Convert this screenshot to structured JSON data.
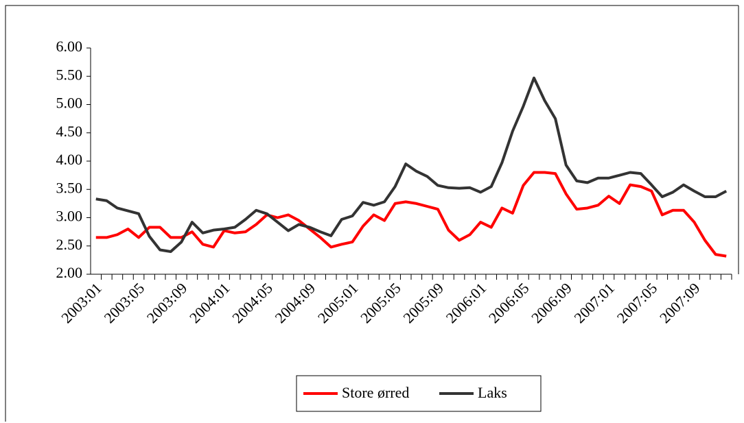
{
  "chart_data": {
    "type": "line",
    "categories": [
      "2003:01",
      null,
      null,
      null,
      "2003:05",
      null,
      null,
      null,
      "2003:09",
      null,
      null,
      null,
      "2004:01",
      null,
      null,
      null,
      "2004:05",
      null,
      null,
      null,
      "2004:09",
      null,
      null,
      null,
      "2005:01",
      null,
      null,
      null,
      "2005:05",
      null,
      null,
      null,
      "2005:09",
      null,
      null,
      null,
      "2006:01",
      null,
      null,
      null,
      "2006:05",
      null,
      null,
      null,
      "2006:09",
      null,
      null,
      null,
      "2007:01",
      null,
      null,
      null,
      "2007:05",
      null,
      null,
      null,
      "2007:09",
      null,
      null,
      null
    ],
    "series": [
      {
        "name": "Store ørred",
        "color": "#ff0000",
        "values": [
          2.65,
          2.65,
          2.7,
          2.8,
          2.65,
          2.83,
          2.83,
          2.65,
          2.65,
          2.75,
          2.53,
          2.48,
          2.77,
          2.73,
          2.75,
          2.88,
          3.05,
          3.0,
          3.05,
          2.95,
          2.8,
          2.65,
          2.48,
          2.53,
          2.57,
          2.85,
          3.05,
          2.95,
          3.25,
          3.28,
          3.25,
          3.2,
          3.15,
          2.78,
          2.6,
          2.7,
          2.92,
          2.83,
          3.17,
          3.08,
          3.57,
          3.8,
          3.8,
          3.78,
          3.42,
          3.15,
          3.17,
          3.22,
          3.38,
          3.25,
          3.58,
          3.55,
          3.47,
          3.05,
          3.13,
          3.13,
          2.92,
          2.6,
          2.35,
          2.32
        ]
      },
      {
        "name": "Laks",
        "color": "#333333",
        "values": [
          3.33,
          3.3,
          3.17,
          3.12,
          3.07,
          2.67,
          2.43,
          2.4,
          2.57,
          2.92,
          2.73,
          2.78,
          2.8,
          2.83,
          2.97,
          3.13,
          3.07,
          2.92,
          2.77,
          2.88,
          2.83,
          2.75,
          2.68,
          2.97,
          3.03,
          3.27,
          3.22,
          3.28,
          3.55,
          3.95,
          3.82,
          3.73,
          3.57,
          3.53,
          3.52,
          3.53,
          3.45,
          3.55,
          3.97,
          4.53,
          4.97,
          5.47,
          5.07,
          4.75,
          3.93,
          3.65,
          3.62,
          3.7,
          3.7,
          3.75,
          3.8,
          3.78,
          3.58,
          3.37,
          3.45,
          3.58,
          3.47,
          3.37,
          3.37,
          3.47
        ]
      }
    ],
    "ylim": [
      2,
      6
    ],
    "yticks": [
      {
        "value": 2,
        "label": "2.00"
      },
      {
        "value": 2.5,
        "label": "2.50"
      },
      {
        "value": 3,
        "label": "3.00"
      },
      {
        "value": 3.5,
        "label": "3.50"
      },
      {
        "value": 4,
        "label": "4.00"
      },
      {
        "value": 4.5,
        "label": "4.50"
      },
      {
        "value": 5,
        "label": "5.00"
      },
      {
        "value": 5.5,
        "label": "5.50"
      },
      {
        "value": 6,
        "label": "6.00"
      }
    ],
    "legend": "bottom"
  }
}
